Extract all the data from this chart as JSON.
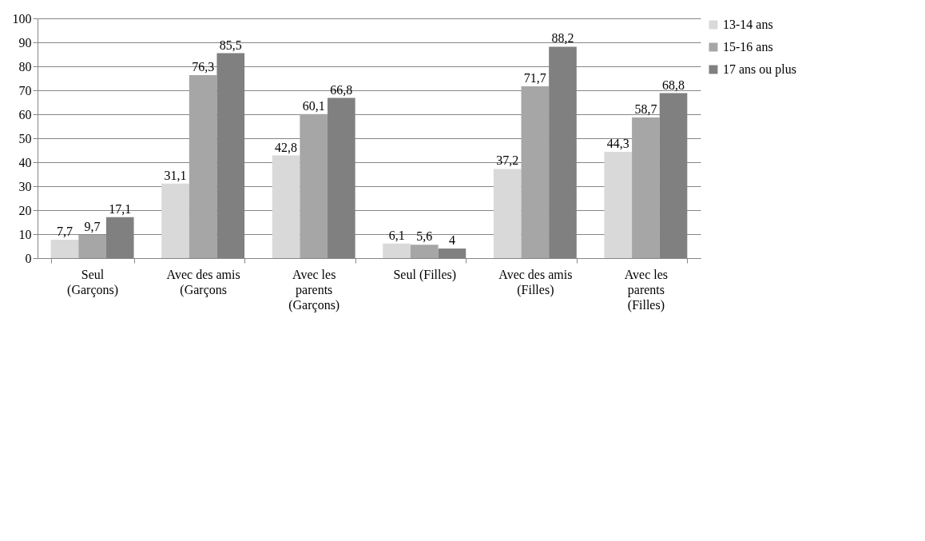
{
  "chart_data": {
    "type": "bar",
    "categories": [
      "Seul (Garçons)",
      "Avec des amis (Garçons",
      "Avec les parents (Garçons)",
      "Seul (Filles)",
      "Avec des amis (Filles)",
      "Avec les parents (Filles)"
    ],
    "series": [
      {
        "name": "13-14 ans",
        "color": "#d9d9d9",
        "values": [
          7.7,
          31.1,
          42.8,
          6.1,
          37.2,
          44.3
        ],
        "value_labels": [
          "7,7",
          "31,1",
          "42,8",
          "6,1",
          "37,2",
          "44,3"
        ]
      },
      {
        "name": "15-16 ans",
        "color": "#a6a6a6",
        "values": [
          9.7,
          76.3,
          60.1,
          5.6,
          71.7,
          58.7
        ],
        "value_labels": [
          "9,7",
          "76,3",
          "60,1",
          "5,6",
          "71,7",
          "58,7"
        ]
      },
      {
        "name": "17 ans ou plus",
        "color": "#808080",
        "values": [
          17.1,
          85.5,
          66.8,
          4,
          88.2,
          68.8
        ],
        "value_labels": [
          "17,1",
          "85,5",
          "66,8",
          "4",
          "88,2",
          "68,8"
        ]
      }
    ],
    "ylim": [
      0,
      100
    ],
    "yticks": [
      0,
      10,
      20,
      30,
      40,
      50,
      60,
      70,
      80,
      90,
      100
    ],
    "grid": "y",
    "legend": "right"
  }
}
